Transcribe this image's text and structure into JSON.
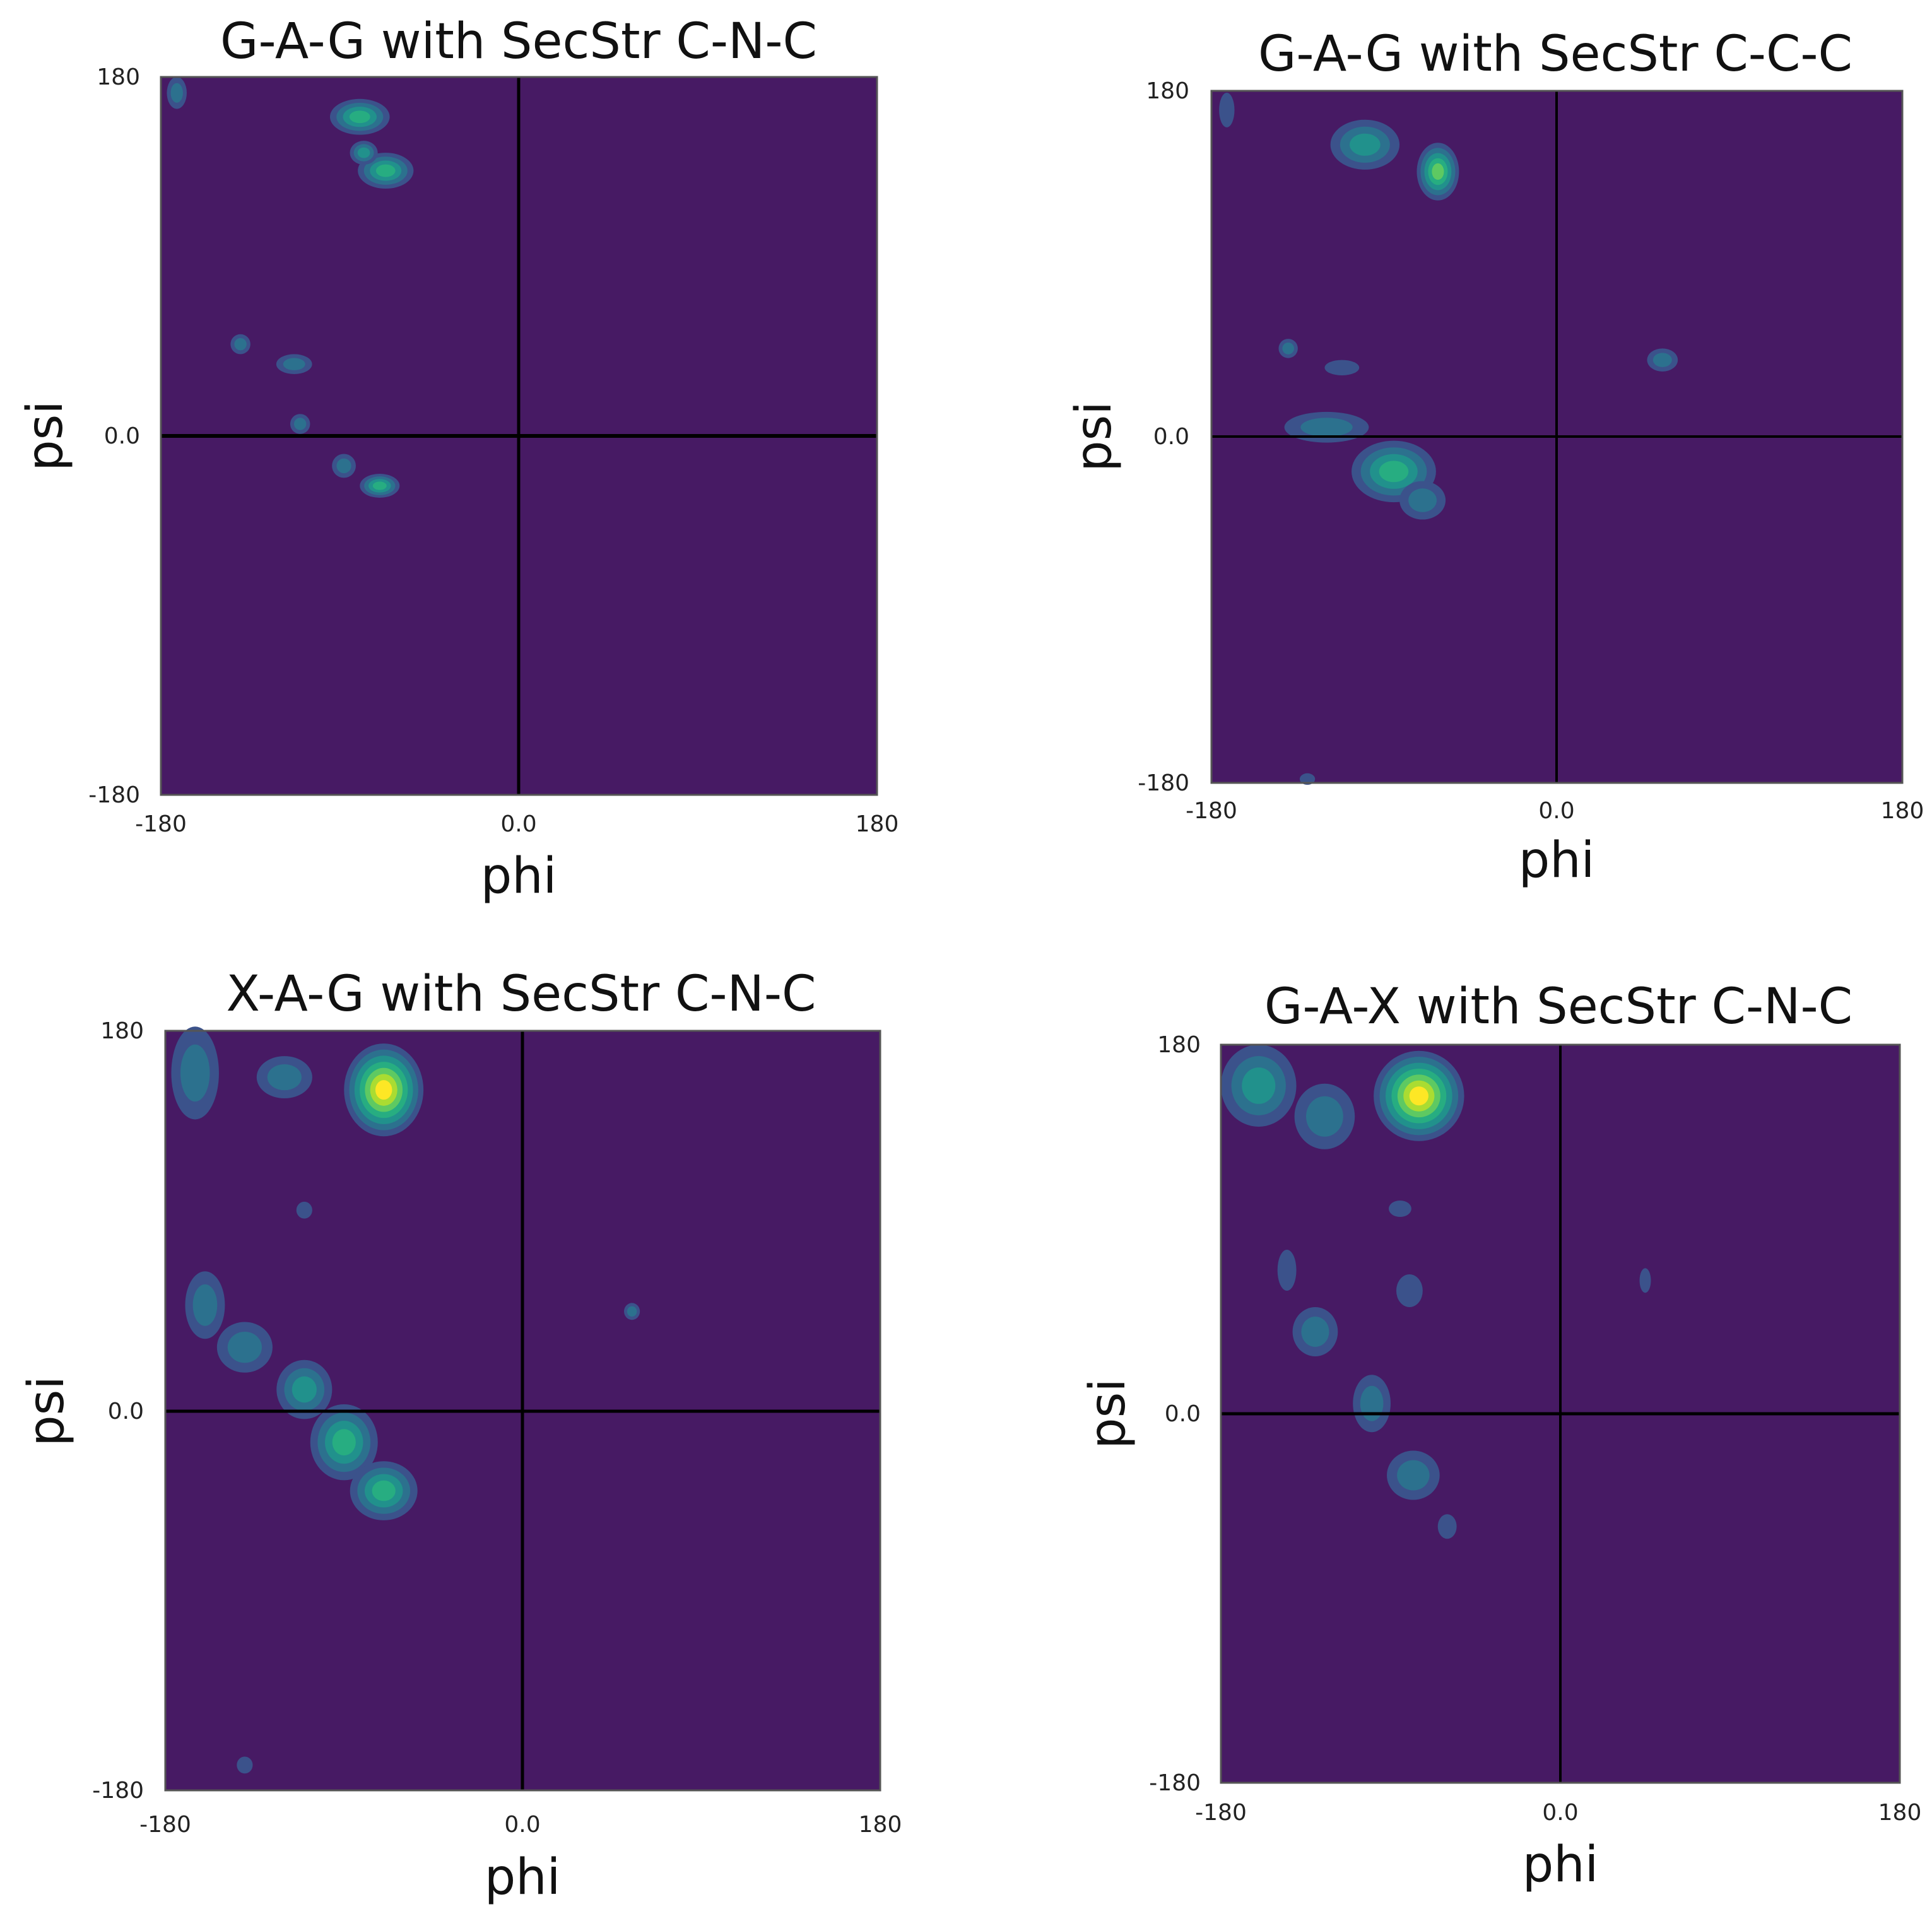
{
  "colors": {
    "background_level": "#471a64",
    "contour_levels": [
      "#471a64",
      "#3b528b",
      "#2c718e",
      "#21918c",
      "#27ad81",
      "#5ec962",
      "#aadc32",
      "#fde725"
    ],
    "frame": "#555555",
    "crosshair": "#000000"
  },
  "chart_data": [
    {
      "type": "heatmap",
      "title": "G-A-G with SecStr C-N-C",
      "xlabel": "phi",
      "ylabel": "psi",
      "xlim": [
        -180,
        180
      ],
      "ylim": [
        -180,
        180
      ],
      "xticks": [
        "-180",
        "0.0",
        "180"
      ],
      "yticks": [
        "-180",
        "0.0",
        "180"
      ],
      "crosshair": [
        0,
        0
      ],
      "grid": false,
      "blobs": [
        {
          "x": -172,
          "y": 172,
          "sx": 5,
          "sy": 8,
          "peak": 2
        },
        {
          "x": -80,
          "y": 160,
          "sx": 15,
          "sy": 9,
          "peak": 4
        },
        {
          "x": -67,
          "y": 133,
          "sx": 14,
          "sy": 9,
          "peak": 4
        },
        {
          "x": -78,
          "y": 142,
          "sx": 7,
          "sy": 6,
          "peak": 3
        },
        {
          "x": -140,
          "y": 46,
          "sx": 5,
          "sy": 5,
          "peak": 2
        },
        {
          "x": -113,
          "y": 36,
          "sx": 9,
          "sy": 5,
          "peak": 2
        },
        {
          "x": -110,
          "y": 6,
          "sx": 5,
          "sy": 5,
          "peak": 2
        },
        {
          "x": -88,
          "y": -15,
          "sx": 6,
          "sy": 6,
          "peak": 2
        },
        {
          "x": -70,
          "y": -25,
          "sx": 10,
          "sy": 6,
          "peak": 4
        }
      ]
    },
    {
      "type": "heatmap",
      "title": "G-A-G with SecStr C-C-C",
      "xlabel": "phi",
      "ylabel": "psi",
      "xlim": [
        -180,
        180
      ],
      "ylim": [
        -180,
        180
      ],
      "xticks": [
        "-180",
        "0.0",
        "180"
      ],
      "yticks": [
        "-180",
        "0.0",
        "180"
      ],
      "crosshair": [
        0,
        0
      ],
      "grid": false,
      "blobs": [
        {
          "x": -172,
          "y": 170,
          "sx": 4,
          "sy": 9,
          "peak": 1
        },
        {
          "x": -100,
          "y": 152,
          "sx": 18,
          "sy": 13,
          "peak": 3
        },
        {
          "x": -62,
          "y": 138,
          "sx": 11,
          "sy": 15,
          "peak": 5
        },
        {
          "x": -140,
          "y": 46,
          "sx": 5,
          "sy": 5,
          "peak": 2
        },
        {
          "x": -112,
          "y": 36,
          "sx": 9,
          "sy": 4,
          "peak": 1
        },
        {
          "x": -120,
          "y": 5,
          "sx": 22,
          "sy": 8,
          "peak": 2
        },
        {
          "x": -85,
          "y": -18,
          "sx": 22,
          "sy": 16,
          "peak": 4
        },
        {
          "x": -70,
          "y": -33,
          "sx": 12,
          "sy": 10,
          "peak": 2
        },
        {
          "x": 55,
          "y": 40,
          "sx": 8,
          "sy": 6,
          "peak": 2
        },
        {
          "x": -130,
          "y": -178,
          "sx": 4,
          "sy": 3,
          "peak": 1
        }
      ]
    },
    {
      "type": "heatmap",
      "title": "X-A-G with SecStr C-N-C",
      "xlabel": "phi",
      "ylabel": "psi",
      "xlim": [
        -180,
        180
      ],
      "ylim": [
        -180,
        180
      ],
      "xticks": [
        "-180",
        "0.0",
        "180"
      ],
      "yticks": [
        "-180",
        "0.0",
        "180"
      ],
      "crosshair": [
        0,
        0
      ],
      "grid": false,
      "blobs": [
        {
          "x": -165,
          "y": 160,
          "sx": 12,
          "sy": 22,
          "peak": 2
        },
        {
          "x": -120,
          "y": 158,
          "sx": 14,
          "sy": 10,
          "peak": 2
        },
        {
          "x": -70,
          "y": 152,
          "sx": 20,
          "sy": 22,
          "peak": 7
        },
        {
          "x": -110,
          "y": 95,
          "sx": 4,
          "sy": 4,
          "peak": 1
        },
        {
          "x": -160,
          "y": 50,
          "sx": 10,
          "sy": 16,
          "peak": 2
        },
        {
          "x": -140,
          "y": 30,
          "sx": 14,
          "sy": 12,
          "peak": 2
        },
        {
          "x": -110,
          "y": 10,
          "sx": 14,
          "sy": 14,
          "peak": 3
        },
        {
          "x": -90,
          "y": -15,
          "sx": 17,
          "sy": 18,
          "peak": 4
        },
        {
          "x": -70,
          "y": -38,
          "sx": 17,
          "sy": 14,
          "peak": 4
        },
        {
          "x": 55,
          "y": 47,
          "sx": 4,
          "sy": 4,
          "peak": 2
        },
        {
          "x": -140,
          "y": -168,
          "sx": 4,
          "sy": 4,
          "peak": 1
        }
      ]
    },
    {
      "type": "heatmap",
      "title": "G-A-X with SecStr C-N-C",
      "xlabel": "phi",
      "ylabel": "psi",
      "xlim": [
        -180,
        180
      ],
      "ylim": [
        -180,
        180
      ],
      "xticks": [
        "-180",
        "0.0",
        "180"
      ],
      "yticks": [
        "-180",
        "0.0",
        "180"
      ],
      "crosshair": [
        0,
        0
      ],
      "grid": false,
      "blobs": [
        {
          "x": -160,
          "y": 160,
          "sx": 20,
          "sy": 20,
          "peak": 3
        },
        {
          "x": -125,
          "y": 145,
          "sx": 16,
          "sy": 16,
          "peak": 2
        },
        {
          "x": -75,
          "y": 155,
          "sx": 24,
          "sy": 22,
          "peak": 7
        },
        {
          "x": -85,
          "y": 100,
          "sx": 6,
          "sy": 4,
          "peak": 1
        },
        {
          "x": -145,
          "y": 70,
          "sx": 5,
          "sy": 10,
          "peak": 1
        },
        {
          "x": -130,
          "y": 40,
          "sx": 12,
          "sy": 12,
          "peak": 2
        },
        {
          "x": -80,
          "y": 60,
          "sx": 7,
          "sy": 8,
          "peak": 1
        },
        {
          "x": -100,
          "y": 5,
          "sx": 10,
          "sy": 14,
          "peak": 2
        },
        {
          "x": -78,
          "y": -30,
          "sx": 14,
          "sy": 12,
          "peak": 2
        },
        {
          "x": -60,
          "y": -55,
          "sx": 5,
          "sy": 6,
          "peak": 1
        },
        {
          "x": 45,
          "y": 65,
          "sx": 3,
          "sy": 6,
          "peak": 1
        }
      ]
    }
  ]
}
